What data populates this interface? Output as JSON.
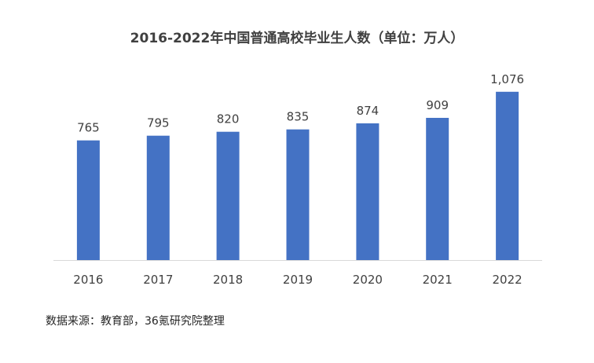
{
  "chart_data": {
    "type": "bar",
    "title": "2016-2022年中国普通高校毕业生人数（单位：万人）",
    "categories": [
      "2016",
      "2017",
      "2018",
      "2019",
      "2020",
      "2021",
      "2022"
    ],
    "values": [
      765,
      795,
      820,
      835,
      874,
      909,
      1076
    ],
    "value_labels": [
      "765",
      "795",
      "820",
      "835",
      "874",
      "909",
      "1,076"
    ],
    "xlabel": "",
    "ylabel": "",
    "ylim": [
      0,
      1120
    ],
    "grid": false,
    "legend": "none",
    "bar_color": "#4472C4",
    "axis_color": "#D9D9D9"
  },
  "source": "数据来源：教育部，36氪研究院整理"
}
